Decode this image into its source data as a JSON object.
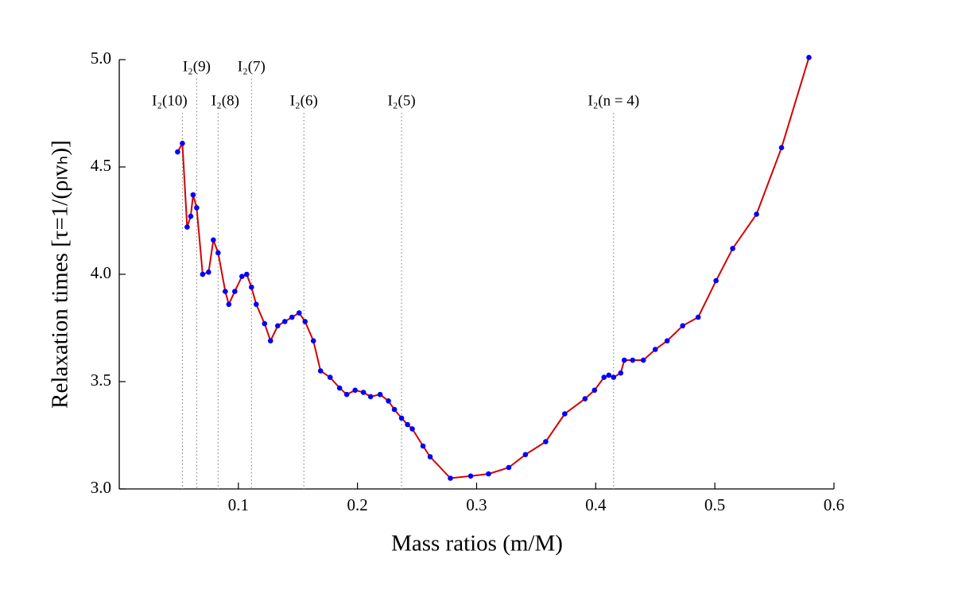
{
  "chart_data": {
    "type": "line",
    "xlabel": "Mass ratios (m/M)",
    "ylabel": "Relaxation times [τ=1/(ρₗvₕ)]",
    "xlim": [
      0.0,
      0.6
    ],
    "xticks": [
      0.1,
      0.2,
      0.3,
      0.4,
      0.5,
      0.6
    ],
    "ylim": [
      3.0,
      5.0
    ],
    "yticks": [
      {
        "value": 3.0,
        "label": "3.0"
      },
      3.5,
      {
        "value": 4.0,
        "label": "4.0"
      },
      4.5,
      {
        "value": 5.0,
        "label": "5.0"
      }
    ],
    "series": [
      {
        "color": "#d40000",
        "marker_color": "#0000ff",
        "x": [
          0.049,
          0.053,
          0.057,
          0.06,
          0.062,
          0.065,
          0.07,
          0.075,
          0.079,
          0.083,
          0.089,
          0.092,
          0.097,
          0.103,
          0.107,
          0.111,
          0.115,
          0.122,
          0.127,
          0.133,
          0.139,
          0.145,
          0.151,
          0.156,
          0.163,
          0.169,
          0.177,
          0.185,
          0.191,
          0.198,
          0.205,
          0.211,
          0.219,
          0.226,
          0.231,
          0.237,
          0.242,
          0.246,
          0.255,
          0.261,
          0.278,
          0.295,
          0.31,
          0.327,
          0.341,
          0.358,
          0.374,
          0.391,
          0.399,
          0.407,
          0.411,
          0.415,
          0.421,
          0.424,
          0.431,
          0.44,
          0.45,
          0.46,
          0.473,
          0.486,
          0.501,
          0.515,
          0.535,
          0.556,
          0.579
        ],
        "values": [
          4.57,
          4.61,
          4.22,
          4.27,
          4.37,
          4.31,
          4.0,
          4.01,
          4.16,
          4.1,
          3.92,
          3.86,
          3.92,
          3.99,
          4.0,
          3.94,
          3.86,
          3.77,
          3.69,
          3.76,
          3.78,
          3.8,
          3.82,
          3.78,
          3.69,
          3.55,
          3.52,
          3.47,
          3.44,
          3.46,
          3.45,
          3.43,
          3.44,
          3.41,
          3.37,
          3.33,
          3.3,
          3.28,
          3.2,
          3.15,
          3.05,
          3.06,
          3.07,
          3.1,
          3.16,
          3.22,
          3.35,
          3.42,
          3.46,
          3.52,
          3.53,
          3.52,
          3.54,
          3.6,
          3.6,
          3.6,
          3.65,
          3.69,
          3.76,
          3.8,
          3.97,
          4.12,
          4.28,
          4.59,
          5.01
        ]
      }
    ],
    "annotations": [
      {
        "label": "I₂(10)",
        "x": 0.053
      },
      {
        "label": "I₂(9)",
        "x": 0.065
      },
      {
        "label": "I₂(8)",
        "x": 0.083
      },
      {
        "label": "I₂(7)",
        "x": 0.111
      },
      {
        "label": "I₂(6)",
        "x": 0.155
      },
      {
        "label": "I₂(5)",
        "x": 0.237
      },
      {
        "label": "I₂(n = 4)",
        "x": 0.415
      }
    ]
  }
}
